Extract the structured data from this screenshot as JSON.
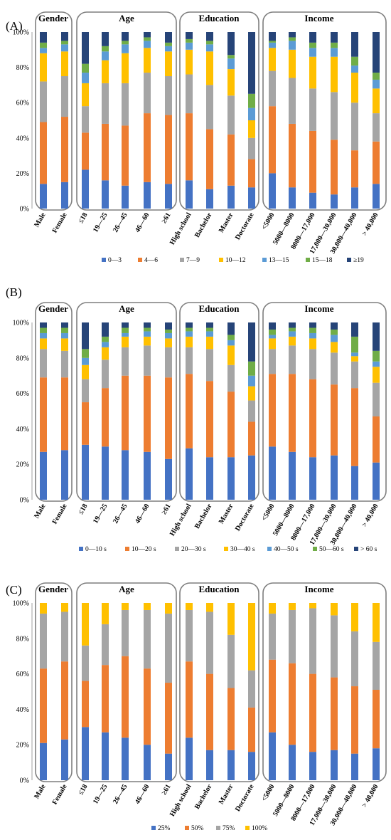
{
  "panels_meta": {
    "colors7": [
      "#4472C4",
      "#ED7D31",
      "#A5A5A5",
      "#FFC000",
      "#5B9BD5",
      "#70AD47",
      "#264478"
    ],
    "colors4": [
      "#4472C4",
      "#ED7D31",
      "#A5A5A5",
      "#FFC000"
    ]
  },
  "chart_data": [
    {
      "type": "bar",
      "stacked": true,
      "panel_label": "(A)",
      "groups": [
        {
          "title": "Gender",
          "categories": [
            "Male",
            "Female"
          ]
        },
        {
          "title": "Age",
          "categories": [
            "≤18",
            "19—25",
            "26—45",
            "46—60",
            "≥61"
          ]
        },
        {
          "title": "Education",
          "categories": [
            "High school",
            "Bachelor",
            "Master",
            "Doctorate"
          ]
        },
        {
          "title": "Income",
          "categories": [
            "<5000",
            "5000—8000",
            "8000—17,000",
            "17,000—30,000",
            "30,000—40,000",
            "> 40,000"
          ]
        }
      ],
      "yticks": [
        "0%",
        "20%",
        "40%",
        "60%",
        "80%",
        "100%"
      ],
      "ylim": [
        0,
        100
      ],
      "series": [
        {
          "name": "0—3",
          "values": [
            14,
            15,
            22,
            16,
            13,
            15,
            14,
            16,
            11,
            13,
            12,
            20,
            12,
            9,
            8,
            12,
            14
          ]
        },
        {
          "name": "4—6",
          "values": [
            35,
            37,
            21,
            32,
            34,
            39,
            39,
            38,
            34,
            29,
            16,
            38,
            36,
            35,
            31,
            21,
            24
          ]
        },
        {
          "name": "7—9",
          "values": [
            23,
            23,
            15,
            23,
            24,
            23,
            22,
            22,
            25,
            22,
            12,
            20,
            26,
            24,
            27,
            27,
            16
          ]
        },
        {
          "name": "10—12",
          "values": [
            16,
            14,
            13,
            13,
            17,
            14,
            14,
            14,
            19,
            15,
            10,
            13,
            16,
            18,
            20,
            17,
            14
          ]
        },
        {
          "name": "13—15",
          "values": [
            3,
            4,
            6,
            5,
            5,
            4,
            3,
            4,
            4,
            6,
            7,
            3,
            5,
            5,
            5,
            4,
            5
          ]
        },
        {
          "name": "15—18",
          "values": [
            3,
            2,
            5,
            3,
            2,
            2,
            2,
            2,
            2,
            2,
            8,
            1,
            2,
            3,
            3,
            5,
            4
          ]
        },
        {
          "name": "≥19",
          "values": [
            6,
            5,
            18,
            8,
            5,
            3,
            6,
            4,
            5,
            13,
            35,
            5,
            3,
            6,
            6,
            14,
            23
          ]
        }
      ]
    },
    {
      "type": "bar",
      "stacked": true,
      "panel_label": "(B)",
      "groups": [
        {
          "title": "Gender",
          "categories": [
            "Male",
            "Female"
          ]
        },
        {
          "title": "Age",
          "categories": [
            "≤18",
            "19—25",
            "26—45",
            "46—60",
            "≥61"
          ]
        },
        {
          "title": "Education",
          "categories": [
            "High school",
            "Bachelor",
            "Master",
            "Doctorate"
          ]
        },
        {
          "title": "Income",
          "categories": [
            "<5000",
            "5000—8000",
            "8000—17,000",
            "17,000—30,000",
            "30,000—40,000",
            "> 40,000"
          ]
        }
      ],
      "yticks": [
        "0%",
        "20%",
        "40%",
        "60%",
        "80%",
        "100%"
      ],
      "ylim": [
        0,
        100
      ],
      "series": [
        {
          "name": "0—10 s",
          "values": [
            27,
            28,
            31,
            30,
            28,
            27,
            23,
            29,
            24,
            24,
            25,
            30,
            27,
            24,
            25,
            19,
            21
          ]
        },
        {
          "name": "10—20 s",
          "values": [
            42,
            41,
            24,
            33,
            42,
            43,
            46,
            42,
            43,
            37,
            19,
            41,
            44,
            44,
            40,
            44,
            26
          ]
        },
        {
          "name": "20—30 s",
          "values": [
            16,
            15,
            13,
            16,
            16,
            17,
            17,
            15,
            18,
            15,
            12,
            14,
            16,
            17,
            18,
            15,
            19
          ]
        },
        {
          "name": "30—40 s",
          "values": [
            6,
            7,
            8,
            7,
            6,
            5,
            5,
            6,
            7,
            11,
            8,
            6,
            5,
            6,
            6,
            3,
            9
          ]
        },
        {
          "name": "40—50 s",
          "values": [
            3,
            3,
            4,
            3,
            2,
            3,
            3,
            3,
            3,
            3,
            6,
            2,
            3,
            3,
            4,
            2,
            3
          ]
        },
        {
          "name": "50—60 s",
          "values": [
            3,
            3,
            5,
            3,
            3,
            2,
            2,
            2,
            2,
            3,
            8,
            3,
            2,
            3,
            3,
            9,
            6
          ]
        },
        {
          "name": "> 60 s",
          "values": [
            3,
            3,
            15,
            8,
            3,
            3,
            4,
            3,
            3,
            7,
            22,
            4,
            3,
            3,
            4,
            8,
            16
          ]
        }
      ]
    },
    {
      "type": "bar",
      "stacked": true,
      "panel_label": "(C)",
      "groups": [
        {
          "title": "Gender",
          "categories": [
            "Male",
            "Female"
          ]
        },
        {
          "title": "Age",
          "categories": [
            "≤18",
            "19—25",
            "26—45",
            "46—60",
            "≥61"
          ]
        },
        {
          "title": "Education",
          "categories": [
            "High school",
            "Bachelor",
            "Master",
            "Doctorate"
          ]
        },
        {
          "title": "Income",
          "categories": [
            "<5000",
            "5000—8000",
            "8000—17,000",
            "17,000—30,000",
            "30,000—40,000",
            "> 40,000"
          ]
        }
      ],
      "yticks": [
        "0%",
        "20%",
        "40%",
        "60%",
        "80%",
        "100%"
      ],
      "ylim": [
        0,
        100
      ],
      "series": [
        {
          "name": "25%",
          "values": [
            21,
            23,
            30,
            27,
            24,
            20,
            15,
            24,
            17,
            17,
            16,
            27,
            20,
            16,
            17,
            15,
            18
          ]
        },
        {
          "name": "50%",
          "values": [
            42,
            44,
            26,
            38,
            46,
            43,
            40,
            43,
            43,
            35,
            25,
            41,
            46,
            44,
            41,
            38,
            33
          ]
        },
        {
          "name": "75%",
          "values": [
            31,
            28,
            20,
            23,
            26,
            33,
            39,
            29,
            35,
            30,
            21,
            26,
            30,
            37,
            35,
            31,
            27
          ]
        },
        {
          "name": "100%",
          "values": [
            6,
            5,
            24,
            12,
            4,
            4,
            6,
            4,
            5,
            18,
            38,
            6,
            4,
            3,
            7,
            16,
            22
          ]
        }
      ]
    }
  ]
}
